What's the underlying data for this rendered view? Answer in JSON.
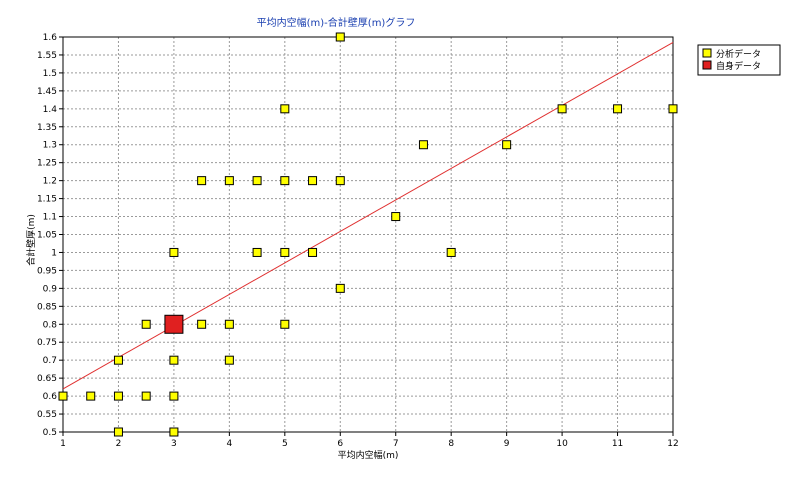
{
  "chart_data": {
    "type": "scatter",
    "title": "平均内空幅(m)-合計壁厚(m)グラフ",
    "xlabel": "平均内空幅(m)",
    "ylabel": "合計壁厚(m)",
    "xlim": [
      1,
      12
    ],
    "ylim": [
      0.5,
      1.6
    ],
    "x_ticks": [
      "1",
      "2",
      "3",
      "4",
      "5",
      "6",
      "7",
      "8",
      "9",
      "10",
      "11",
      "12"
    ],
    "y_ticks": [
      "0.5",
      "0.55",
      "0.6",
      "0.65",
      "0.7",
      "0.75",
      "0.8",
      "0.85",
      "0.9",
      "0.95",
      "1",
      "1.05",
      "1.1",
      "1.15",
      "1.2",
      "1.25",
      "1.3",
      "1.35",
      "1.4",
      "1.45",
      "1.5",
      "1.55",
      "1.6"
    ],
    "grid": true,
    "legend_position": "top-right",
    "series": [
      {
        "name": "分析データ",
        "color": "#ffff00",
        "points": [
          [
            1,
            0.6
          ],
          [
            1.5,
            0.6
          ],
          [
            2,
            0.6
          ],
          [
            2.5,
            0.6
          ],
          [
            3,
            0.6
          ],
          [
            2,
            0.5
          ],
          [
            3,
            0.5
          ],
          [
            2,
            0.7
          ],
          [
            3,
            0.7
          ],
          [
            4,
            0.7
          ],
          [
            2.5,
            0.8
          ],
          [
            3.5,
            0.8
          ],
          [
            4,
            0.8
          ],
          [
            5,
            0.8
          ],
          [
            6,
            0.9
          ],
          [
            3,
            1.0
          ],
          [
            4.5,
            1.0
          ],
          [
            5,
            1.0
          ],
          [
            5.5,
            1.0
          ],
          [
            8,
            1.0
          ],
          [
            7,
            1.1
          ],
          [
            3.5,
            1.2
          ],
          [
            4,
            1.2
          ],
          [
            4.5,
            1.2
          ],
          [
            5,
            1.2
          ],
          [
            5.5,
            1.2
          ],
          [
            6,
            1.2
          ],
          [
            7.5,
            1.3
          ],
          [
            9,
            1.3
          ],
          [
            5,
            1.4
          ],
          [
            10,
            1.4
          ],
          [
            11,
            1.4
          ],
          [
            12,
            1.4
          ],
          [
            6,
            1.6
          ]
        ]
      },
      {
        "name": "自身データ",
        "color": "#e02020",
        "points": [
          [
            3,
            0.8
          ]
        ]
      }
    ],
    "trend_line": {
      "color": "#e03030",
      "x": [
        1,
        12
      ],
      "y": [
        0.62,
        1.585
      ]
    }
  }
}
